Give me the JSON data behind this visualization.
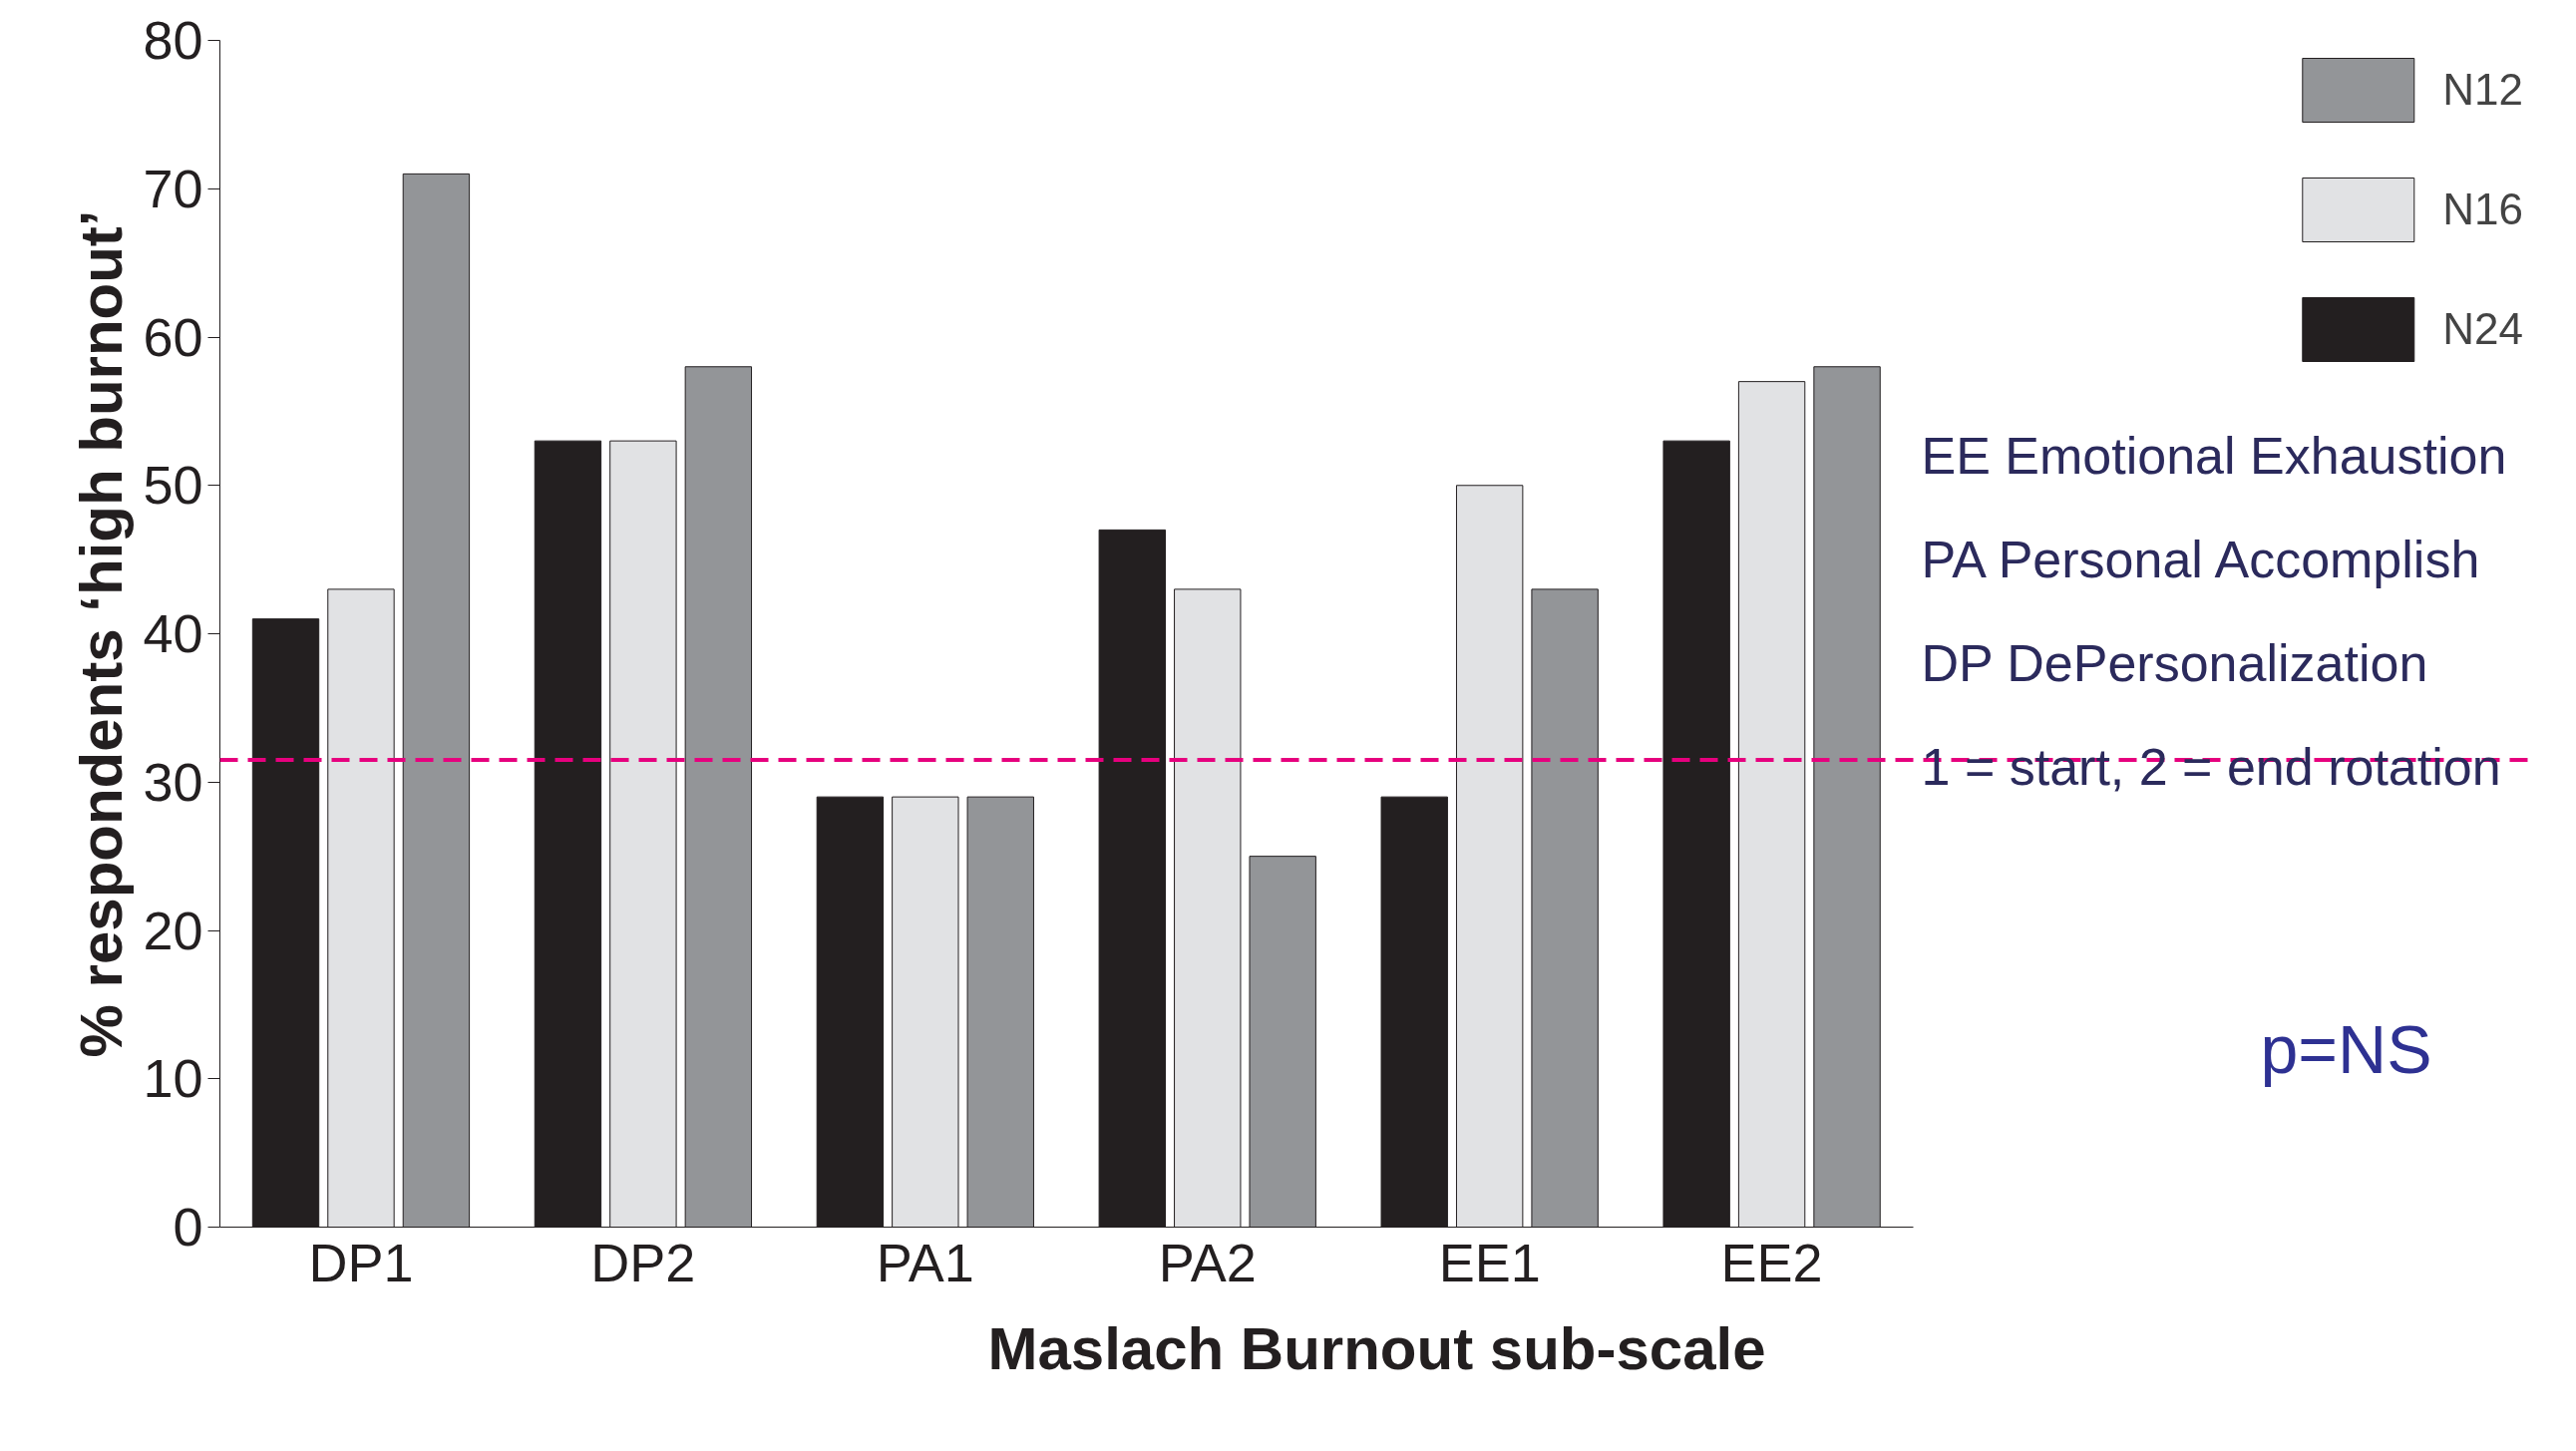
{
  "chart_data": {
    "type": "bar",
    "xlabel": "Maslach Burnout sub-scale",
    "ylabel": "% respondents ‘high burnout’",
    "categories": [
      "DP1",
      "DP2",
      "PA1",
      "PA2",
      "EE1",
      "EE2"
    ],
    "series": [
      {
        "name": "N24",
        "color": "#231f20",
        "values": [
          41,
          53,
          29,
          47,
          29,
          53
        ]
      },
      {
        "name": "N16",
        "color": "#e1e2e4",
        "values": [
          43,
          53,
          29,
          43,
          50,
          57
        ]
      },
      {
        "name": "N12",
        "color": "#939598",
        "values": [
          71,
          58,
          29,
          25,
          43,
          58
        ]
      }
    ],
    "ylim": [
      0,
      80
    ],
    "yticks": [
      0,
      10,
      20,
      30,
      40,
      50,
      60,
      70,
      80
    ],
    "grid": false,
    "legend": "top right",
    "ref_lines": [
      {
        "axis": "y",
        "value": 31.5,
        "color": "#e6007e",
        "line_style": "dashed"
      }
    ],
    "annotations": [
      "EE Emotional Exhaustion",
      "PA Personal Accomplish",
      "DP DePersonalization",
      "1 = start, 2 = end rotation",
      "p=NS"
    ]
  }
}
